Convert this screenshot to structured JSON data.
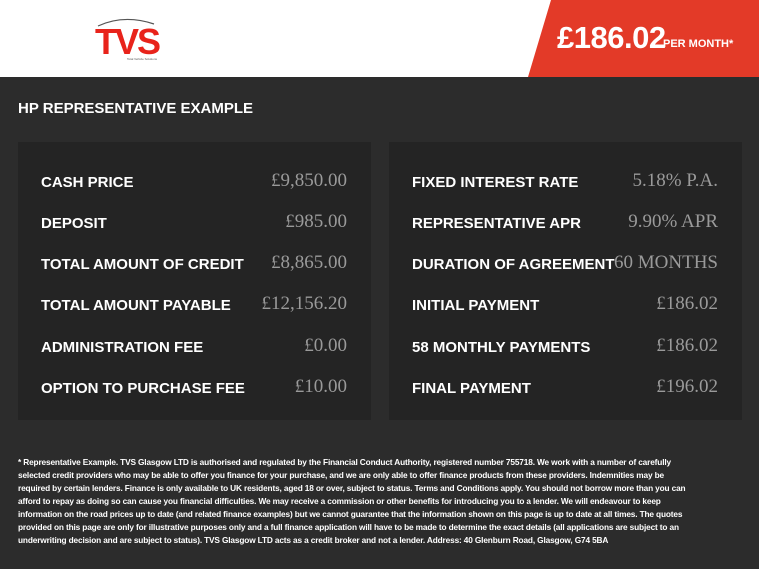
{
  "header": {
    "logo_text": "TVS",
    "logo_tagline": "Total Vehicle Solutions",
    "price": "£186.02",
    "per_month": "PER MONTH*",
    "brand_color": "#e33a28"
  },
  "title": "HP REPRESENTATIVE EXAMPLE",
  "left": [
    {
      "label": "CASH PRICE",
      "value": "£9,850.00"
    },
    {
      "label": "DEPOSIT",
      "value": "£985.00"
    },
    {
      "label": "TOTAL AMOUNT OF CREDIT",
      "value": "£8,865.00"
    },
    {
      "label": "TOTAL AMOUNT PAYABLE",
      "value": "£12,156.20"
    },
    {
      "label": "ADMINISTRATION FEE",
      "value": "£0.00"
    },
    {
      "label": "OPTION TO PURCHASE FEE",
      "value": "£10.00"
    }
  ],
  "right": [
    {
      "label": "FIXED INTEREST RATE",
      "value": "5.18% P.A."
    },
    {
      "label": "REPRESENTATIVE APR",
      "value": "9.90% APR"
    },
    {
      "label": "DURATION OF AGREEMENT",
      "value": "60 MONTHS"
    },
    {
      "label": "INITIAL PAYMENT",
      "value": "£186.02"
    },
    {
      "label": "58 MONTHLY PAYMENTS",
      "value": "£186.02"
    },
    {
      "label": "FINAL PAYMENT",
      "value": "£196.02"
    }
  ],
  "disclaimer": "* Representative Example. TVS Glasgow LTD is authorised and regulated by the Financial Conduct Authority, registered number 755718. We work with a number of carefully selected credit providers who may be able to offer you finance for your purchase, and we are only able to offer finance products from these providers. Indemnities may be required by certain lenders. Finance is only available to UK residents, aged 18 or over, subject to status. Terms and Conditions apply. You should not borrow more than you can afford to repay as doing so can cause you financial difficulties. We may receive a commission or other benefits for introducing you to a lender. We will endeavour to keep information on the road prices up to date (and related finance examples) but we cannot guarantee that the information shown on this page is up to date at all times. The quotes provided on this page are only for illustrative purposes only and a full finance application will have to be made to determine the exact details (all applications are subject to an underwriting decision and are subject to status). TVS Glasgow LTD acts as a credit broker and not a lender. Address: 40 Glenburn Road, Glasgow, G74 5BA"
}
